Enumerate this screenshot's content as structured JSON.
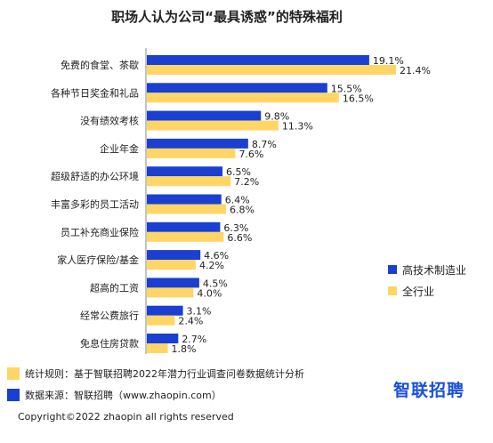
{
  "chart_data": {
    "type": "bar",
    "orientation": "horizontal",
    "title": "职场人认为公司“最具诱惑”的特殊福利",
    "categories": [
      "免费的食堂、茶歇",
      "各种节日奖金和礼品",
      "没有绩效考核",
      "企业年金",
      "超级舒适的办公环境",
      "丰富多彩的员工活动",
      "员工补充商业保险",
      "家人医疗保险/基金",
      "超高的工资",
      "经常公费旅行",
      "免息住房贷款"
    ],
    "series": [
      {
        "name": "高技术制造业",
        "color": "#1a3fd1",
        "values": [
          19.1,
          15.5,
          9.8,
          8.7,
          6.5,
          6.4,
          6.3,
          4.6,
          4.5,
          3.1,
          2.7
        ],
        "labels": [
          "19.1%",
          "15.5%",
          "9.8%",
          "8.7%",
          "6.5%",
          "6.4%",
          "6.3%",
          "4.6%",
          "4.5%",
          "3.1%",
          "2.7%"
        ]
      },
      {
        "name": "全行业",
        "color": "#ffd666",
        "values": [
          21.4,
          16.5,
          11.3,
          7.6,
          7.2,
          6.8,
          6.6,
          4.2,
          4.0,
          2.4,
          1.8
        ],
        "labels": [
          "21.4%",
          "16.5%",
          "11.3%",
          "7.6%",
          "7.2%",
          "6.8%",
          "6.6%",
          "4.2%",
          "4.0%",
          "2.4%",
          "1.8%"
        ]
      }
    ],
    "xlim": [
      0,
      25
    ],
    "grid": false,
    "legend_position": "right"
  },
  "footer": {
    "note_label": "统计规则：基于智联招聘2022年潜力行业调查问卷数据统计分析",
    "source_label": "数据来源：智联招聘（www.zhaopin.com）",
    "note_color": "#ffd666",
    "source_color": "#1a3fd1",
    "copyright": "Copyright©2022 zhaopin all rights reserved",
    "brand": "智联招聘"
  }
}
